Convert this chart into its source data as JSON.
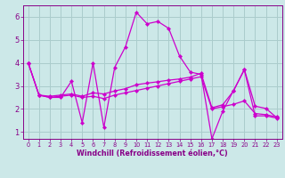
{
  "xlabel": "Windchill (Refroidissement éolien,°C)",
  "bg_color": "#cce8e8",
  "line_color": "#cc00cc",
  "grid_color": "#aacccc",
  "axis_color": "#880088",
  "text_color": "#880088",
  "xlim": [
    -0.5,
    23.5
  ],
  "ylim": [
    0.7,
    6.5
  ],
  "yticks": [
    1,
    2,
    3,
    4,
    5,
    6
  ],
  "xticks": [
    0,
    1,
    2,
    3,
    4,
    5,
    6,
    7,
    8,
    9,
    10,
    11,
    12,
    13,
    14,
    15,
    16,
    17,
    18,
    19,
    20,
    21,
    22,
    23
  ],
  "series": [
    [
      4.0,
      2.6,
      2.5,
      2.5,
      3.2,
      1.4,
      4.0,
      1.2,
      3.8,
      4.7,
      6.2,
      5.7,
      5.8,
      5.5,
      4.3,
      3.6,
      3.5,
      0.7,
      1.9,
      2.8,
      3.7,
      1.7,
      1.7,
      1.6
    ],
    [
      4.0,
      2.6,
      2.5,
      2.55,
      2.6,
      2.5,
      2.55,
      2.45,
      2.6,
      2.7,
      2.8,
      2.9,
      3.0,
      3.1,
      3.2,
      3.3,
      3.4,
      2.0,
      2.1,
      2.2,
      2.35,
      1.8,
      1.75,
      1.65
    ],
    [
      4.0,
      2.6,
      2.55,
      2.6,
      2.65,
      2.55,
      2.7,
      2.65,
      2.78,
      2.88,
      3.05,
      3.12,
      3.18,
      3.25,
      3.3,
      3.38,
      3.55,
      2.05,
      2.18,
      2.78,
      3.72,
      2.12,
      2.02,
      1.62
    ]
  ],
  "xlabel_fontsize": 5.8,
  "tick_fontsize_x": 4.8,
  "tick_fontsize_y": 6.0
}
